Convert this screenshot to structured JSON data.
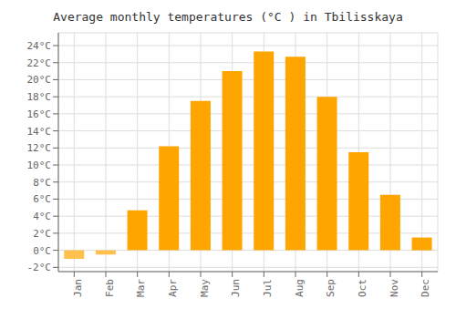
{
  "chart_data": {
    "type": "bar",
    "title": "Average monthly temperatures (°C ) in Tbilisskaya",
    "categories": [
      "Jan",
      "Feb",
      "Mar",
      "Apr",
      "May",
      "Jun",
      "Jul",
      "Aug",
      "Sep",
      "Oct",
      "Nov",
      "Dec"
    ],
    "values": [
      -1.0,
      -0.5,
      4.7,
      12.2,
      17.5,
      21.0,
      23.3,
      22.7,
      18.0,
      11.5,
      6.5,
      1.5
    ],
    "colors": [
      "#FFC04D",
      "#FFC04D",
      "#FFA500",
      "#FFA500",
      "#FFA500",
      "#FFA500",
      "#FFA500",
      "#FFA500",
      "#FFA500",
      "#FFA500",
      "#FFA500",
      "#FFA500"
    ],
    "ylim": [
      -2.5,
      25.5
    ],
    "yticks": [
      {
        "value": -2,
        "label": "-2°C"
      },
      {
        "value": 0,
        "label": "0°C"
      },
      {
        "value": 2,
        "label": "2°C"
      },
      {
        "value": 4,
        "label": "4°C"
      },
      {
        "value": 6,
        "label": "6°C"
      },
      {
        "value": 8,
        "label": "8°C"
      },
      {
        "value": 10,
        "label": "10°C"
      },
      {
        "value": 12,
        "label": "12°C"
      },
      {
        "value": 14,
        "label": "14°C"
      },
      {
        "value": 16,
        "label": "16°C"
      },
      {
        "value": 18,
        "label": "18°C"
      },
      {
        "value": 20,
        "label": "20°C"
      },
      {
        "value": 22,
        "label": "22°C"
      },
      {
        "value": 24,
        "label": "24°C"
      }
    ],
    "grid": true
  }
}
